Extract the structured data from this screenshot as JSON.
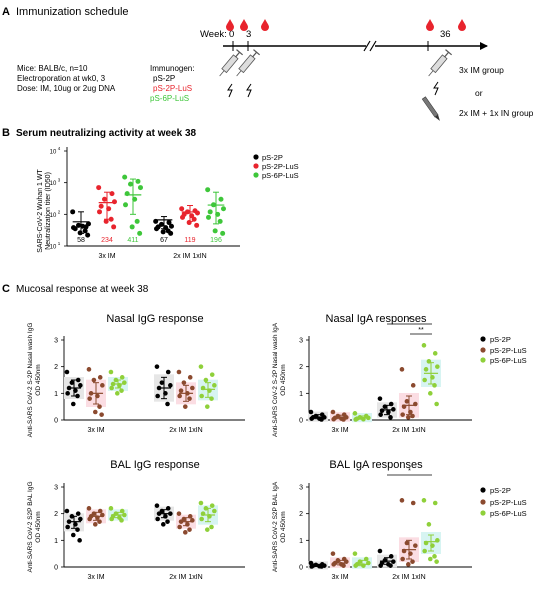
{
  "panel_a": {
    "letter": "A",
    "title": "Immunization schedule",
    "week_label": "Week:",
    "ticks": [
      "0",
      "3",
      "36"
    ],
    "setup_lines": [
      "Mice: BALB/c, n=10",
      "Electroporation at wk0, 3",
      "Dose: IM, 10ug or 2ug DNA"
    ],
    "immunogen_title": "Immunogen:",
    "immunogens": [
      {
        "name": "pS-2P",
        "color": "#000000"
      },
      {
        "name": "pS-2P-LuS",
        "color": "#e8242d"
      },
      {
        "name": "pS-6P-LuS",
        "color": "#3ec63a"
      }
    ],
    "group_1": "3x IM group",
    "or": "or",
    "group_2": "2x IM + 1x IN group"
  },
  "panel_b": {
    "letter": "B",
    "title": "Serum neutralizing activity at week 38",
    "ylabel_1": "SARS-CoV-2 Wuhan 1 WT",
    "ylabel_2": "Neutralization titer (ID50)",
    "legend": [
      "pS-2P",
      "pS-2P-LuS",
      "pS-6P-LuS"
    ]
  },
  "panel_c": {
    "letter": "C",
    "title": "Mucosal response at week 38",
    "legend": [
      "pS-2P",
      "pS-2P-LuS",
      "pS-6P-LuS"
    ],
    "sig_single": "*",
    "sig_double": "**"
  },
  "colors": {
    "ps2p": "#000000",
    "ps2p_lus_b": "#e8242d",
    "ps2p_lus_c": "#8b4a2f",
    "ps6p_lus": "#3ec63a",
    "ps6p_lus_c": "#8fd03a",
    "box_ps2p": "#e6e6e6",
    "box_ps2p_lus": "#fbdde3",
    "box_ps6p_lus": "#d7f4f2"
  },
  "chart_data": [
    {
      "id": "serum_neut",
      "type": "scatter",
      "title": "",
      "ylabel": "SARS-CoV-2 Wuhan 1 WT Neutralization titer (ID50)",
      "yscale": "log",
      "yticks": [
        "10^1",
        "10^2",
        "10^3",
        "10^4"
      ],
      "ylim": [
        10,
        10000
      ],
      "groups": [
        "3x IM",
        "2x IM  1xIN"
      ],
      "series": [
        {
          "name": "pS-2P",
          "group_values": [
            [
              120,
              40,
              45,
              50,
              35,
              42,
              38,
              30,
              26,
              22
            ],
            [
              60,
              55,
              48,
              42,
              40,
              38,
              35,
              30,
              28,
              25
            ]
          ],
          "means": [
            58,
            67
          ],
          "sd": [
            [
              25,
              120
            ],
            [
              35,
              85
            ]
          ]
        },
        {
          "name": "pS-2P-LuS",
          "group_values": [
            [
              700,
              450,
              300,
              250,
              180,
              150,
              120,
              70,
              60,
              40
            ],
            [
              150,
              130,
              120,
              110,
              100,
              90,
              80,
              70,
              55,
              45
            ]
          ],
          "means": [
            234,
            119
          ],
          "sd": [
            [
              70,
              500
            ],
            [
              60,
              190
            ]
          ]
        },
        {
          "name": "pS-6P-LuS",
          "group_values": [
            [
              1500,
              1100,
              900,
              700,
              450,
              300,
              200,
              60,
              40,
              25
            ],
            [
              600,
              300,
              200,
              150,
              120,
              100,
              80,
              60,
              30,
              25
            ]
          ],
          "means": [
            411,
            196
          ],
          "sd": [
            [
              100,
              1300
            ],
            [
              50,
              500
            ]
          ]
        }
      ],
      "annotations": [
        [
          "58",
          "234",
          "411"
        ],
        [
          "67",
          "119",
          "196"
        ]
      ]
    },
    {
      "id": "nasal_igg",
      "type": "scatter",
      "title": "Nasal IgG response",
      "ylabel": "Anti-SARS CoV-2 S-2P Nasal wash IgG OD 450nm",
      "yticks": [
        "0",
        "1",
        "2",
        "3"
      ],
      "ylim": [
        0,
        3
      ],
      "groups": [
        "3x IM",
        "2x IM  1xIN"
      ],
      "series": [
        {
          "name": "pS-2P",
          "group_values": [
            [
              1.8,
              1.5,
              1.4,
              1.3,
              1.2,
              1.1,
              1.0,
              0.9,
              0.6
            ],
            [
              2.0,
              1.8,
              1.4,
              1.3,
              1.2,
              1.0,
              0.9,
              0.6
            ]
          ],
          "means": [
            1.2,
            1.2
          ],
          "sd": [
            [
              0.9,
              1.5
            ],
            [
              0.8,
              1.6
            ]
          ]
        },
        {
          "name": "pS-2P-LuS",
          "group_values": [
            [
              1.9,
              1.6,
              1.5,
              1.3,
              1.0,
              0.9,
              0.8,
              0.5,
              0.3,
              0.2
            ],
            [
              1.8,
              1.6,
              1.4,
              1.2,
              1.1,
              1.0,
              0.9,
              0.8,
              0.5
            ]
          ],
          "means": [
            1.0,
            1.0
          ],
          "sd": [
            [
              0.6,
              1.4
            ],
            [
              0.7,
              1.3
            ]
          ]
        },
        {
          "name": "pS-6P-LuS",
          "group_values": [
            [
              1.8,
              1.6,
              1.5,
              1.4,
              1.35,
              1.3,
              1.2,
              1.1,
              1.0
            ],
            [
              2.0,
              1.7,
              1.5,
              1.3,
              1.2,
              1.1,
              0.9,
              0.8,
              0.5
            ]
          ],
          "means": [
            1.35,
            1.15
          ],
          "sd": [
            [
              1.2,
              1.5
            ],
            [
              0.85,
              1.4
            ]
          ]
        }
      ]
    },
    {
      "id": "nasal_iga",
      "type": "scatter",
      "title": "Nasal IgA responses",
      "ylabel": "Anti-SARS CoV-2 S-2P Nasal wash IgA OD 450nm",
      "yticks": [
        "0",
        "1",
        "2",
        "3"
      ],
      "ylim": [
        0,
        3
      ],
      "groups": [
        "3x IM",
        "2x IM  1xIN"
      ],
      "series": [
        {
          "name": "pS-2P",
          "group_values": [
            [
              0.3,
              0.2,
              0.15,
              0.1,
              0.1,
              0.05,
              0.05,
              0.02
            ],
            [
              0.8,
              0.6,
              0.5,
              0.4,
              0.35,
              0.3,
              0.2,
              0.1
            ]
          ],
          "means": [
            0.1,
            0.38
          ],
          "sd": [
            [
              0.05,
              0.2
            ],
            [
              0.2,
              0.55
            ]
          ]
        },
        {
          "name": "pS-2P-LuS",
          "group_values": [
            [
              0.3,
              0.2,
              0.15,
              0.1,
              0.08,
              0.05,
              0.03,
              0.02
            ],
            [
              1.9,
              1.3,
              0.7,
              0.6,
              0.5,
              0.3,
              0.2,
              0.15,
              0.1
            ]
          ],
          "means": [
            0.1,
            0.55
          ],
          "sd": [
            [
              0.05,
              0.18
            ],
            [
              0.2,
              0.9
            ]
          ]
        },
        {
          "name": "pS-6P-LuS",
          "group_values": [
            [
              0.25,
              0.15,
              0.1,
              0.08,
              0.05,
              0.03,
              0.02
            ],
            [
              2.8,
              2.5,
              2.2,
              2.0,
              1.9,
              1.6,
              1.5,
              1.3,
              1.0,
              0.6
            ]
          ],
          "means": [
            0.08,
            1.75
          ],
          "sd": [
            [
              0.03,
              0.15
            ],
            [
              1.35,
              2.15
            ]
          ]
        }
      ],
      "significance": [
        {
          "label": "*",
          "from": "2x IM 1xIN pS-2P",
          "to": "2x IM 1xIN pS-6P-LuS"
        },
        {
          "label": "**",
          "from": "2x IM 1xIN pS-2P-LuS",
          "to": "2x IM 1xIN pS-6P-LuS"
        }
      ]
    },
    {
      "id": "bal_igg",
      "type": "scatter",
      "title": "BAL IgG response",
      "ylabel": "Anti-SARS CoV-2 S2P BAL IgG OD 450nm",
      "yticks": [
        "0",
        "1",
        "2",
        "3"
      ],
      "ylim": [
        0,
        3
      ],
      "groups": [
        "3x IM",
        "2x IM  1xIN"
      ],
      "series": [
        {
          "name": "pS-2P",
          "group_values": [
            [
              2.1,
              2.0,
              1.9,
              1.8,
              1.7,
              1.6,
              1.5,
              1.4,
              1.2,
              1.0
            ],
            [
              2.3,
              2.2,
              2.1,
              2.0,
              2.0,
              1.9,
              1.8,
              1.7,
              1.6
            ]
          ],
          "means": [
            1.7,
            2.0
          ],
          "sd": [
            [
              1.45,
              1.9
            ],
            [
              1.85,
              2.15
            ]
          ]
        },
        {
          "name": "pS-2P-LuS",
          "group_values": [
            [
              2.2,
              2.1,
              2.0,
              1.95,
              1.9,
              1.85,
              1.8,
              1.7,
              1.6
            ],
            [
              2.0,
              1.9,
              1.8,
              1.75,
              1.7,
              1.6,
              1.5,
              1.4,
              1.3
            ]
          ],
          "means": [
            1.9,
            1.7
          ],
          "sd": [
            [
              1.75,
              2.05
            ],
            [
              1.55,
              1.85
            ]
          ]
        },
        {
          "name": "pS-6P-LuS",
          "group_values": [
            [
              2.2,
              2.1,
              2.0,
              1.95,
              1.9,
              1.85,
              1.8,
              1.75
            ],
            [
              2.4,
              2.3,
              2.2,
              2.1,
              2.0,
              1.9,
              1.8,
              1.5,
              1.4
            ]
          ],
          "means": [
            1.95,
            1.95
          ],
          "sd": [
            [
              1.85,
              2.05
            ],
            [
              1.7,
              2.2
            ]
          ]
        }
      ]
    },
    {
      "id": "bal_iga",
      "type": "scatter",
      "title": "BAL IgA responses",
      "ylabel": "Anti-SARS CoV-2 S2P BAL IgA OD 450nm",
      "yticks": [
        "0",
        "1",
        "2",
        "3"
      ],
      "ylim": [
        0,
        3
      ],
      "groups": [
        "3x IM",
        "2x IM  1xIN"
      ],
      "series": [
        {
          "name": "pS-2P",
          "group_values": [
            [
              0.15,
              0.1,
              0.08,
              0.05,
              0.05,
              0.03,
              0.02,
              0.02
            ],
            [
              0.6,
              0.4,
              0.25,
              0.2,
              0.15,
              0.1,
              0.05,
              0.05
            ]
          ],
          "means": [
            0.05,
            0.22
          ],
          "sd": [
            [
              0.02,
              0.1
            ],
            [
              0.1,
              0.35
            ]
          ]
        },
        {
          "name": "pS-2P-LuS",
          "group_values": [
            [
              0.5,
              0.3,
              0.25,
              0.2,
              0.15,
              0.1,
              0.1,
              0.05
            ],
            [
              2.5,
              2.4,
              0.9,
              0.8,
              0.6,
              0.5,
              0.3,
              0.2,
              0.1
            ]
          ],
          "means": [
            0.15,
            0.65
          ],
          "sd": [
            [
              0.08,
              0.25
            ],
            [
              0.3,
              1.0
            ]
          ]
        },
        {
          "name": "pS-6P-LuS",
          "group_values": [
            [
              0.5,
              0.3,
              0.2,
              0.15,
              0.1,
              0.05,
              0.05
            ],
            [
              2.5,
              2.4,
              1.6,
              1.0,
              0.9,
              0.8,
              0.6,
              0.4,
              0.3,
              0.2
            ]
          ],
          "means": [
            0.1,
            0.95
          ],
          "sd": [
            [
              0.05,
              0.25
            ],
            [
              0.6,
              1.2
            ]
          ]
        }
      ],
      "significance": [
        {
          "label": "*",
          "from": "2x IM 1xIN pS-2P",
          "to": "2x IM 1xIN pS-6P-LuS"
        }
      ]
    }
  ]
}
